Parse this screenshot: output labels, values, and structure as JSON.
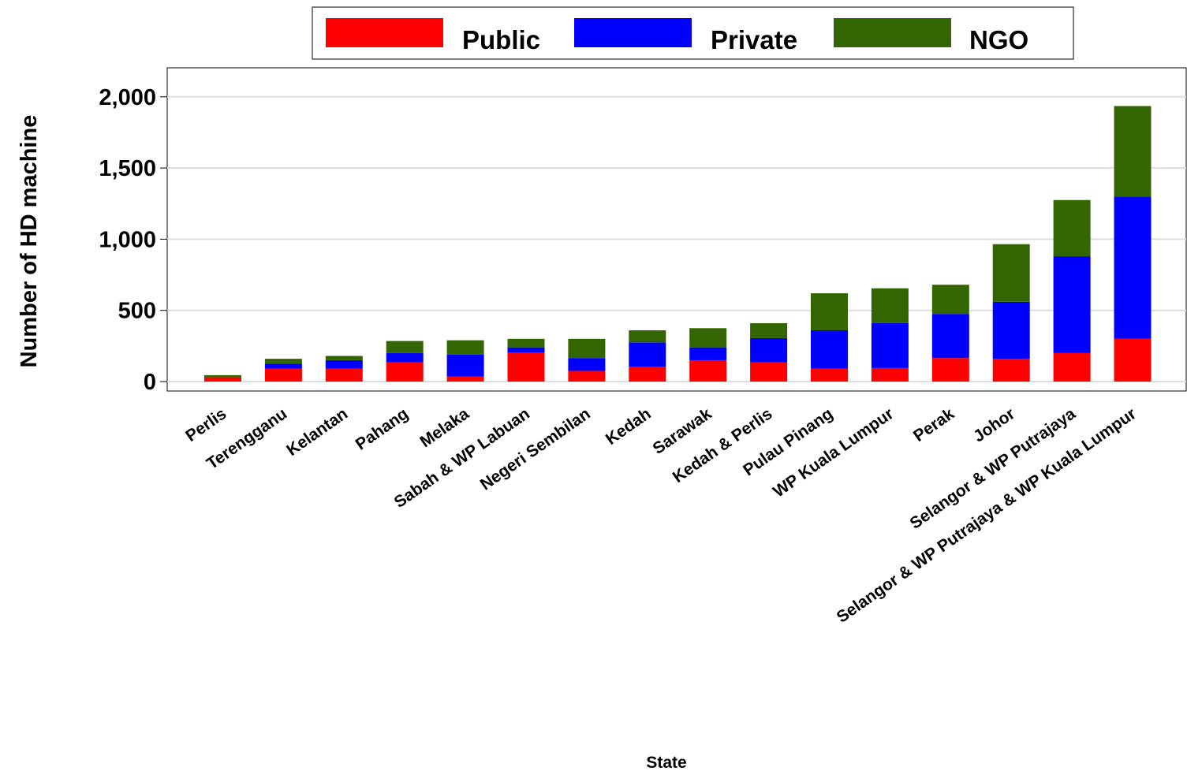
{
  "chart_data": {
    "type": "bar",
    "stacked": true,
    "xlabel": "State",
    "ylabel": "Number of HD machine",
    "ylim": [
      0,
      2200
    ],
    "yticks": [
      0,
      500,
      1000,
      1500,
      2000
    ],
    "ytick_labels": [
      "0",
      "500",
      "1,000",
      "1,500",
      "2,000"
    ],
    "grid": true,
    "legend_position": "top",
    "categories": [
      "Perlis",
      "Terengganu",
      "Kelantan",
      "Pahang",
      "Melaka",
      "Sabah & WP Labuan",
      "Negeri Sembilan",
      "Kedah",
      "Sarawak",
      "Kedah & Perlis",
      "Pulau Pinang",
      "WP Kuala Lumpur",
      "Perak",
      "Johor",
      "Selangor & WP Putrajaya",
      "Selangor & WP Putrajaya & WP Kuala Lumpur"
    ],
    "series": [
      {
        "name": "Public",
        "color": "#ff0000",
        "values": [
          30,
          90,
          90,
          135,
          35,
          205,
          75,
          105,
          150,
          135,
          90,
          95,
          165,
          160,
          200,
          300
        ]
      },
      {
        "name": "Private",
        "color": "#0000ff",
        "values": [
          0,
          35,
          60,
          65,
          155,
          35,
          90,
          170,
          90,
          170,
          270,
          315,
          310,
          400,
          680,
          1000
        ]
      },
      {
        "name": "NGO",
        "color": "#336600",
        "values": [
          15,
          35,
          30,
          85,
          100,
          60,
          135,
          85,
          135,
          105,
          260,
          245,
          205,
          405,
          395,
          635
        ]
      }
    ]
  }
}
